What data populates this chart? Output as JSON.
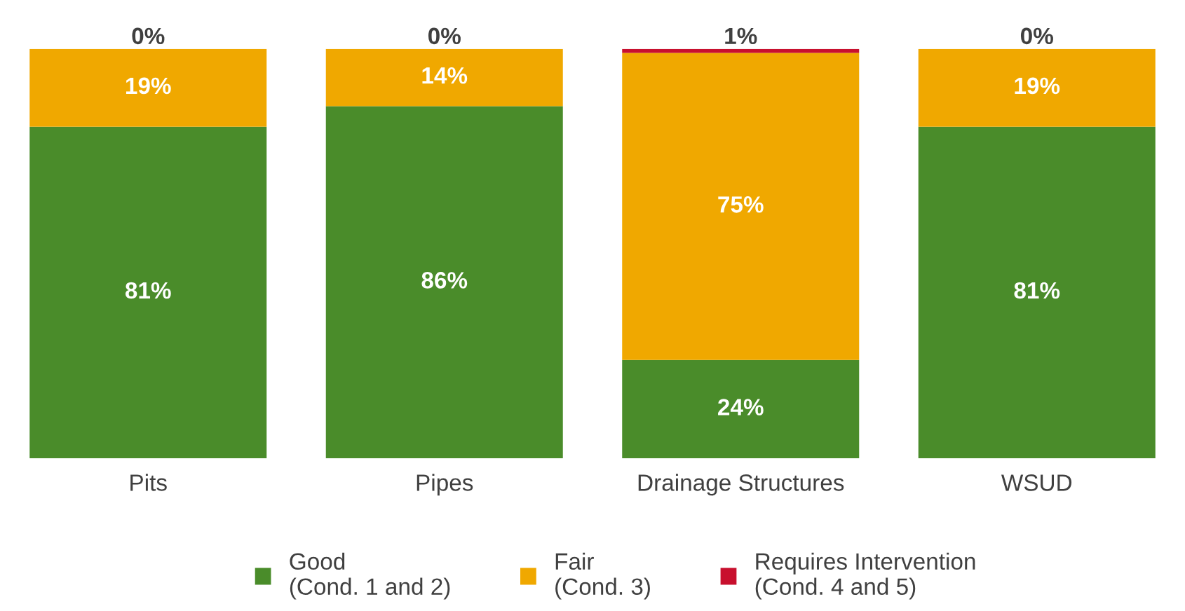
{
  "chart_data": {
    "type": "bar",
    "stacked": true,
    "categories": [
      "Pits",
      "Pipes",
      "Drainage Structures",
      "WSUD"
    ],
    "series": [
      {
        "name": "Good\n(Cond. 1 and 2)",
        "color": "#4a8c2a",
        "values": [
          81,
          86,
          24,
          81
        ],
        "value_labels": [
          "81%",
          "86%",
          "24%",
          "81%"
        ]
      },
      {
        "name": "Fair\n(Cond. 3)",
        "color": "#f0a800",
        "values": [
          19,
          14,
          75,
          19
        ],
        "value_labels": [
          "19%",
          "14%",
          "75%",
          "19%"
        ]
      },
      {
        "name": "Requires Intervention\n(Cond. 4 and 5)",
        "color": "#c8102e",
        "values": [
          0,
          0,
          1,
          0
        ],
        "value_labels": [
          "0%",
          "0%",
          "1%",
          "0%"
        ]
      }
    ],
    "ylim": [
      0,
      100
    ],
    "tick_labels": "x",
    "grid": false,
    "legend": "bottom"
  }
}
